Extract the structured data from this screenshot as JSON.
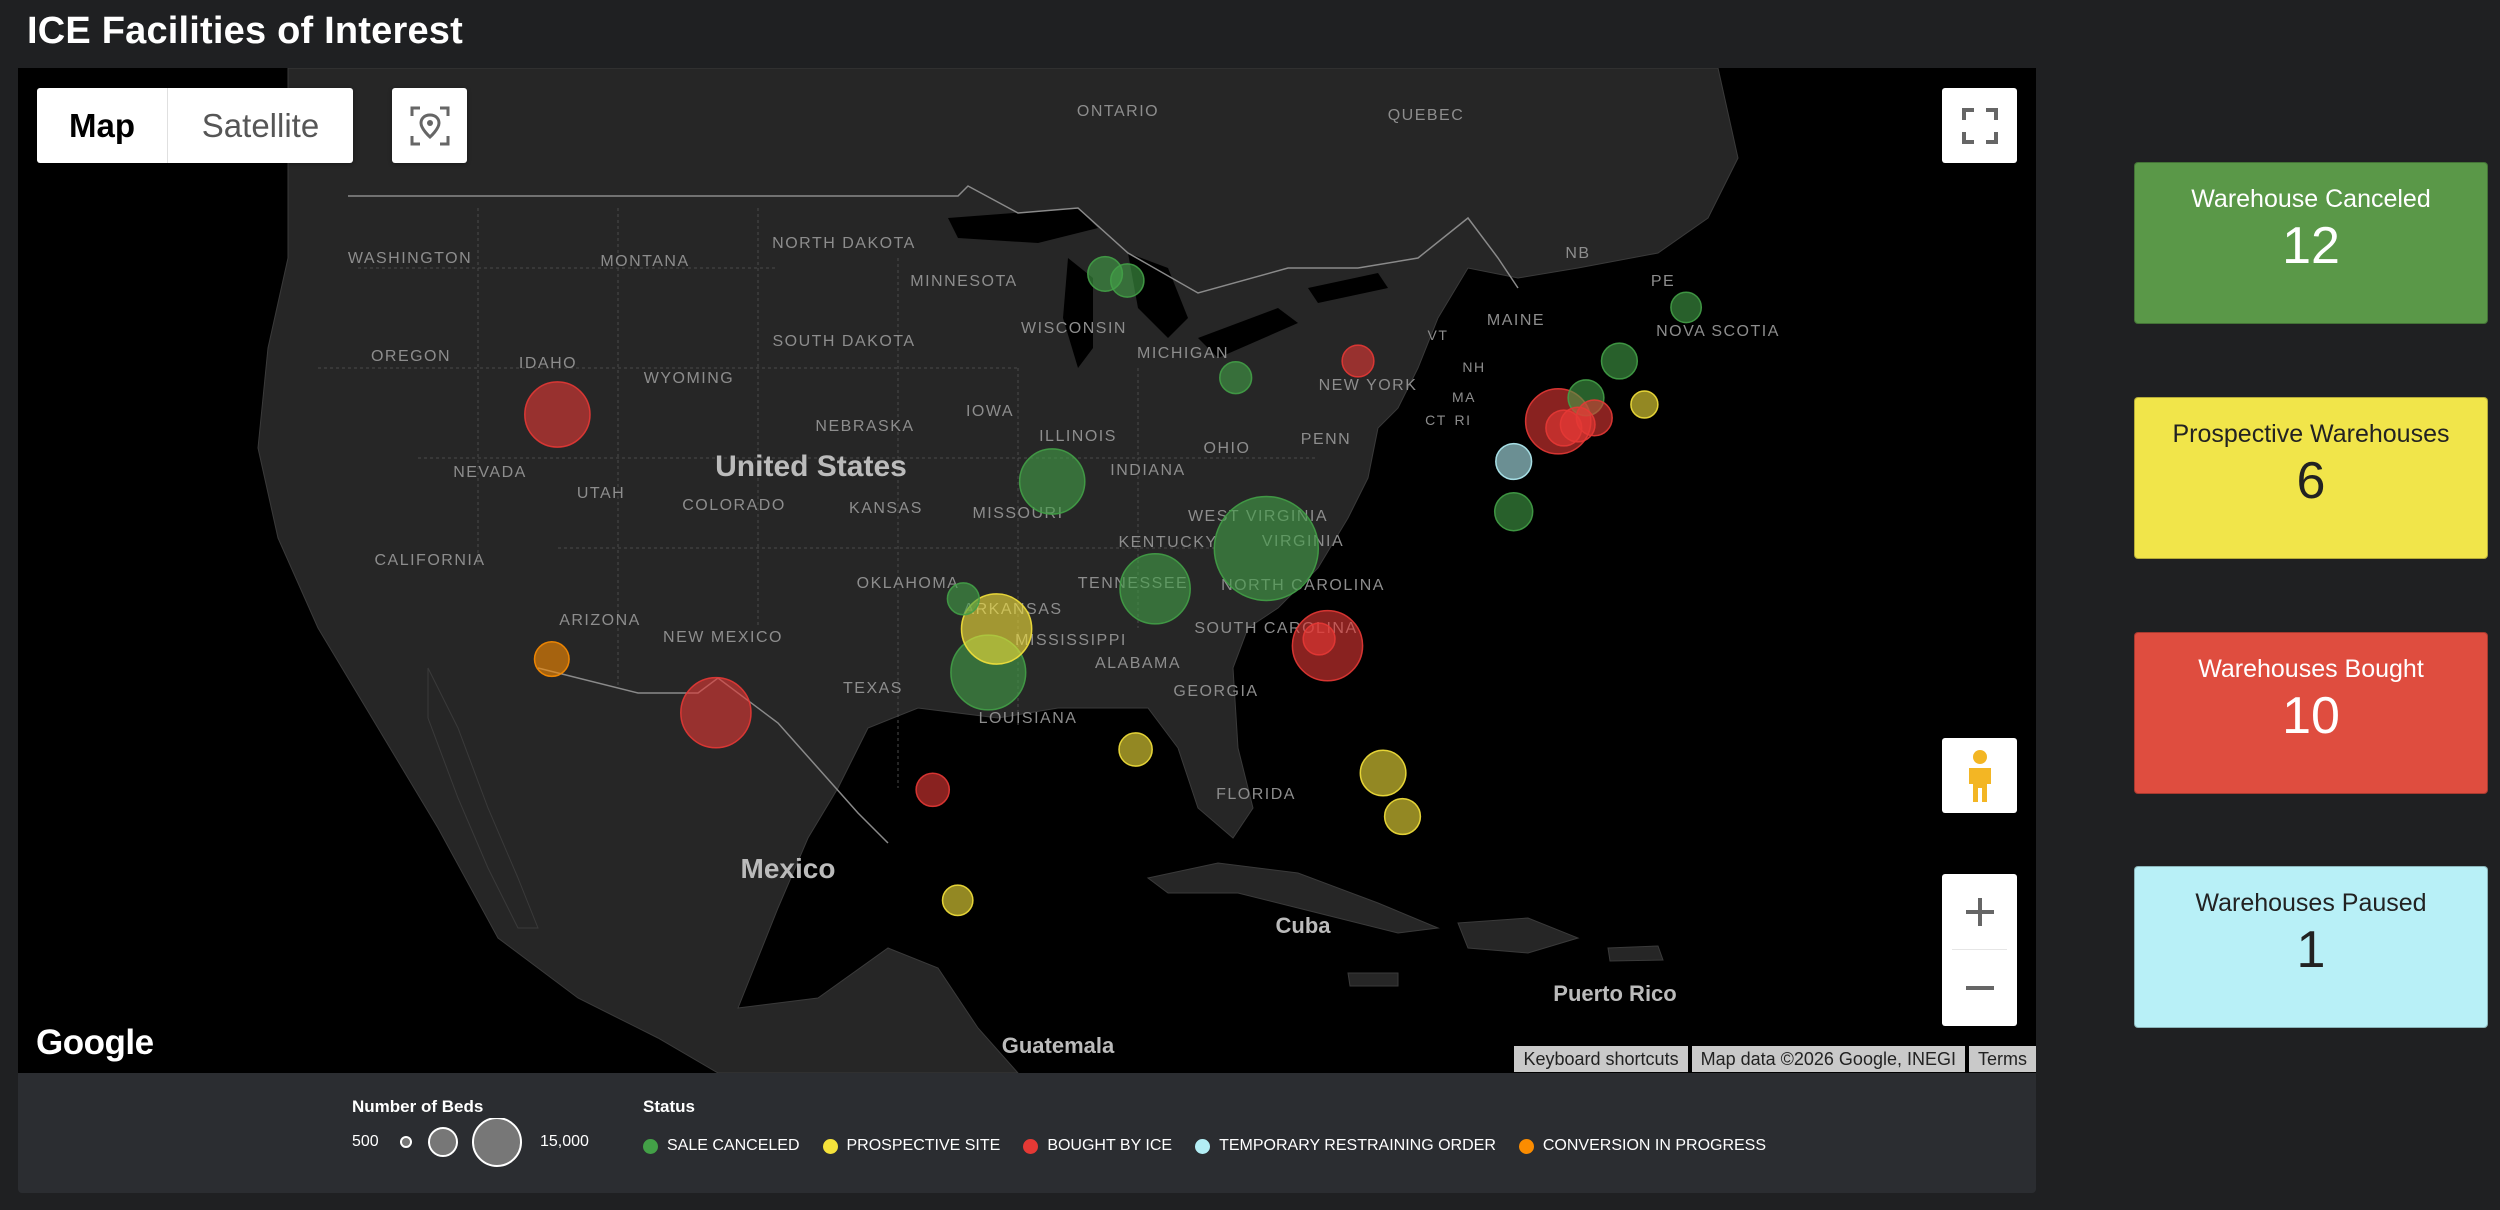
{
  "page": {
    "title": "ICE Facilities of Interest"
  },
  "map": {
    "type_control": {
      "map_label": "Map",
      "satellite_label": "Satellite",
      "selected": "Map"
    },
    "labels": {
      "countries": [
        "United States",
        "Mexico",
        "Cuba",
        "Guatemala"
      ],
      "regions": [
        "Puerto Rico"
      ],
      "provinces": [
        "ONTARIO",
        "QUEBEC",
        "NB",
        "PE",
        "NOVA SCOTIA"
      ],
      "states": [
        "WASHINGTON",
        "MONTANA",
        "NORTH DAKOTA",
        "MINNESOTA",
        "WISCONSIN",
        "OREGON",
        "IDAHO",
        "WYOMING",
        "SOUTH DAKOTA",
        "MICHIGAN",
        "NEW YORK",
        "NEVADA",
        "UTAH",
        "COLORADO",
        "NEBRASKA",
        "IOWA",
        "ILLINOIS",
        "INDIANA",
        "OHIO",
        "PENN",
        "KANSAS",
        "MISSOURI",
        "WEST VIRGINIA",
        "VIRGINIA",
        "KENTUCKY",
        "CALIFORNIA",
        "OKLAHOMA",
        "TENNESSEE",
        "NORTH CAROLINA",
        "ARIZONA",
        "NEW MEXICO",
        "ARKANSAS",
        "SOUTH CAROLINA",
        "MISSISSIPPI",
        "ALABAMA",
        "GEORGIA",
        "TEXAS",
        "LOUISIANA",
        "FLORIDA",
        "MAINE",
        "VT",
        "NH",
        "MA",
        "CT",
        "RI"
      ]
    },
    "attribution": {
      "keyboard": "Keyboard shortcuts",
      "data": "Map data ©2026 Google, INEGI",
      "terms": "Terms"
    },
    "logo_text": "Google",
    "facilities": [
      {
        "status": "SALE CANCELED",
        "lat": 44.9,
        "lng": -92.3,
        "beds": 900
      },
      {
        "status": "SALE CANCELED",
        "lat": 44.7,
        "lng": -91.5,
        "beds": 800
      },
      {
        "status": "SALE CANCELED",
        "lat": 41.8,
        "lng": -87.6,
        "beds": 700
      },
      {
        "status": "SALE CANCELED",
        "lat": 38.7,
        "lng": -94.2,
        "beds": 5000
      },
      {
        "status": "SALE CANCELED",
        "lat": 35.2,
        "lng": -97.4,
        "beds": 700
      },
      {
        "status": "SALE CANCELED",
        "lat": 33.0,
        "lng": -96.5,
        "beds": 7000
      },
      {
        "status": "SALE CANCELED",
        "lat": 35.5,
        "lng": -90.5,
        "beds": 6000
      },
      {
        "status": "SALE CANCELED",
        "lat": 36.7,
        "lng": -86.5,
        "beds": 15000
      },
      {
        "status": "SALE CANCELED",
        "lat": 42.3,
        "lng": -73.8,
        "beds": 1000
      },
      {
        "status": "SALE CANCELED",
        "lat": 43.9,
        "lng": -71.4,
        "beds": 600
      },
      {
        "status": "SALE CANCELED",
        "lat": 37.8,
        "lng": -77.6,
        "beds": 1200
      },
      {
        "status": "SALE CANCELED",
        "lat": 41.2,
        "lng": -75.0,
        "beds": 1000
      },
      {
        "status": "PROSPECTIVE SITE",
        "lat": 34.3,
        "lng": -96.2,
        "beds": 6000
      },
      {
        "status": "PROSPECTIVE SITE",
        "lat": 30.7,
        "lng": -91.2,
        "beds": 800
      },
      {
        "status": "PROSPECTIVE SITE",
        "lat": 30.0,
        "lng": -82.3,
        "beds": 2000
      },
      {
        "status": "PROSPECTIVE SITE",
        "lat": 28.7,
        "lng": -81.6,
        "beds": 1000
      },
      {
        "status": "PROSPECTIVE SITE",
        "lat": 26.2,
        "lng": -97.6,
        "beds": 600
      },
      {
        "status": "PROSPECTIVE SITE",
        "lat": 41.0,
        "lng": -72.9,
        "beds": 400
      },
      {
        "status": "BOUGHT BY ICE",
        "lat": 40.7,
        "lng": -112.0,
        "beds": 5000
      },
      {
        "status": "BOUGHT BY ICE",
        "lat": 31.8,
        "lng": -106.3,
        "beds": 6000
      },
      {
        "status": "BOUGHT BY ICE",
        "lat": 29.5,
        "lng": -98.5,
        "beds": 800
      },
      {
        "status": "BOUGHT BY ICE",
        "lat": 33.8,
        "lng": -84.3,
        "beds": 6000
      },
      {
        "status": "BOUGHT BY ICE",
        "lat": 34.0,
        "lng": -84.6,
        "beds": 700
      },
      {
        "status": "BOUGHT BY ICE",
        "lat": 40.5,
        "lng": -76.0,
        "beds": 5000
      },
      {
        "status": "BOUGHT BY ICE",
        "lat": 40.3,
        "lng": -75.8,
        "beds": 1000
      },
      {
        "status": "BOUGHT BY ICE",
        "lat": 40.6,
        "lng": -74.7,
        "beds": 1000
      },
      {
        "status": "BOUGHT BY ICE",
        "lat": 42.3,
        "lng": -83.2,
        "beds": 700
      },
      {
        "status": "BOUGHT BY ICE",
        "lat": 40.4,
        "lng": -75.3,
        "beds": 900
      },
      {
        "status": "TEMPORARY RESTRAINING ORDER",
        "lat": 39.3,
        "lng": -77.6,
        "beds": 1000
      },
      {
        "status": "CONVERSION IN PROGRESS",
        "lat": 33.4,
        "lng": -112.2,
        "beds": 900
      }
    ]
  },
  "legend": {
    "beds_title": "Number of Beds",
    "beds_min": "500",
    "beds_max": "15,000",
    "status_title": "Status",
    "statuses": [
      {
        "label": "SALE CANCELED",
        "color": "#43a047"
      },
      {
        "label": "PROSPECTIVE SITE",
        "color": "#f5e23b"
      },
      {
        "label": "BOUGHT BY ICE",
        "color": "#e53935"
      },
      {
        "label": "TEMPORARY RESTRAINING ORDER",
        "color": "#b3eef5"
      },
      {
        "label": "CONVERSION IN PROGRESS",
        "color": "#fb8c00"
      }
    ]
  },
  "cards": [
    {
      "label": "Warehouse Canceled",
      "value": "12",
      "bg": "#5a9848",
      "fg": "#ffffff"
    },
    {
      "label": "Prospective Warehouses",
      "value": "6",
      "bg": "#f1e54a",
      "fg": "#222222"
    },
    {
      "label": "Warehouses Bought",
      "value": "10",
      "bg": "#df4d3f",
      "fg": "#ffffff"
    },
    {
      "label": "Warehouses Paused",
      "value": "1",
      "bg": "#b8f0f7",
      "fg": "#222222"
    }
  ]
}
